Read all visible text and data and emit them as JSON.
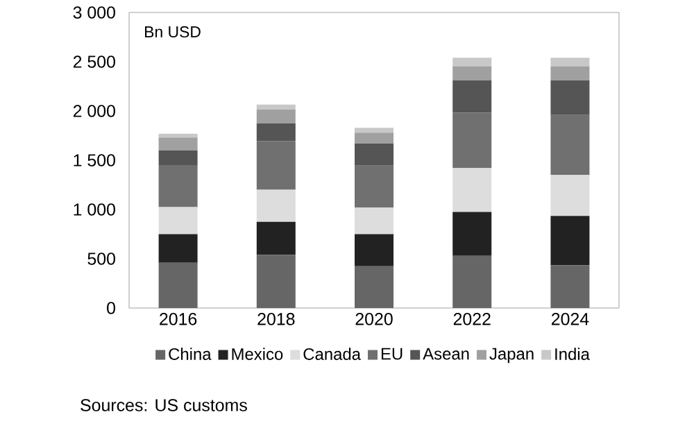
{
  "chart_data": {
    "type": "bar",
    "stacked": true,
    "categories": [
      "2016",
      "2018",
      "2020",
      "2022",
      "2024"
    ],
    "series": [
      {
        "name": "China",
        "color": "#666666",
        "values": [
          460,
          540,
          425,
          530,
          435
        ]
      },
      {
        "name": "Mexico",
        "color": "#222222",
        "values": [
          290,
          335,
          325,
          445,
          500
        ]
      },
      {
        "name": "Canada",
        "color": "#dddddd",
        "values": [
          275,
          325,
          270,
          445,
          415
        ]
      },
      {
        "name": "EU",
        "color": "#707070",
        "values": [
          425,
          495,
          425,
          565,
          610
        ]
      },
      {
        "name": "Asean",
        "color": "#555555",
        "values": [
          150,
          180,
          225,
          325,
          350
        ]
      },
      {
        "name": "Japan",
        "color": "#a0a0a0",
        "values": [
          130,
          140,
          110,
          145,
          145
        ]
      },
      {
        "name": "India",
        "color": "#c8c8c8",
        "values": [
          40,
          50,
          50,
          85,
          85
        ]
      }
    ],
    "ylim": [
      0,
      3000
    ],
    "yticks": [
      0,
      500,
      {
        "value": 1000,
        "label": "1 000"
      },
      {
        "value": 1500,
        "label": "1 500"
      },
      {
        "value": 2000,
        "label": "2 000"
      },
      {
        "value": 2500,
        "label": "2 500"
      },
      {
        "value": 3000,
        "label": "3 000"
      }
    ],
    "legend": "bottom",
    "grid": false,
    "annotations": [
      "Bn USD",
      "Sources: US customs"
    ]
  }
}
